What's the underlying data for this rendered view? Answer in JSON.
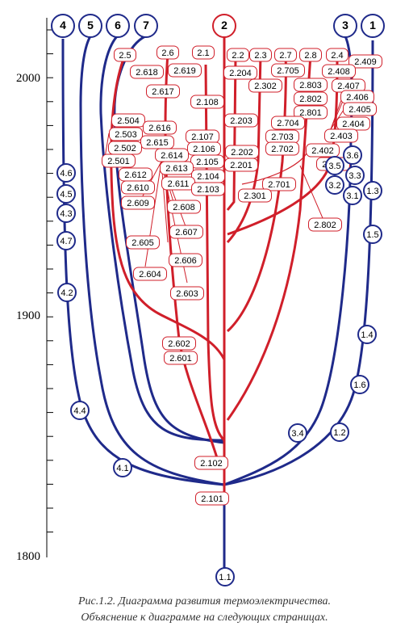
{
  "axis": {
    "year_labels": [
      "2000",
      "1900",
      "1800"
    ]
  },
  "headers": [
    {
      "id": "h4",
      "label": "4",
      "color": "blue"
    },
    {
      "id": "h5",
      "label": "5",
      "color": "blue"
    },
    {
      "id": "h6",
      "label": "6",
      "color": "blue"
    },
    {
      "id": "h7",
      "label": "7",
      "color": "blue"
    },
    {
      "id": "h2",
      "label": "2",
      "color": "red"
    },
    {
      "id": "h3",
      "label": "3",
      "color": "blue"
    },
    {
      "id": "h1",
      "label": "1",
      "color": "blue"
    }
  ],
  "red_labels": [
    "2.5",
    "2.6",
    "2.1",
    "2.2",
    "2.3",
    "2.7",
    "2.8",
    "2.4",
    "2.409",
    "2.618",
    "2.619",
    "2.204",
    "2.705",
    "2.408",
    "2.302",
    "2.803",
    "2.407",
    "2.617",
    "2.802",
    "2.406",
    "2.108",
    "2.801",
    "2.405",
    "2.504",
    "2.203",
    "2.704",
    "2.404",
    "2.616",
    "2.503",
    "2.107",
    "2.703",
    "2.403",
    "2.615",
    "2.502",
    "2.106",
    "2.202",
    "2.702",
    "2.402",
    "2.614",
    "2.501",
    "2.105",
    "2.201",
    "2.401",
    "2.613",
    "2.612",
    "2.104",
    "2.610",
    "2.611",
    "2.103",
    "2.701",
    "2.609",
    "2.301",
    "2.608",
    "2.802",
    "2.607",
    "2.605",
    "2.606",
    "2.604",
    "2.603",
    "2.602",
    "2.601",
    "2.102",
    "2.101"
  ],
  "blue_labels": [
    "4.6",
    "4.5",
    "4.3",
    "4.7",
    "4.2",
    "4.4",
    "4.1",
    "3.6",
    "3.5",
    "3.3",
    "3.2",
    "3.1",
    "1.3",
    "1.5",
    "1.4",
    "1.6",
    "1.2",
    "3.4",
    "1.1"
  ],
  "caption": {
    "line1": "Рис.1.2. Диаграмма развития термоэлектричества.",
    "line2": "Объяснение к диаграмме на следующих страницах."
  }
}
